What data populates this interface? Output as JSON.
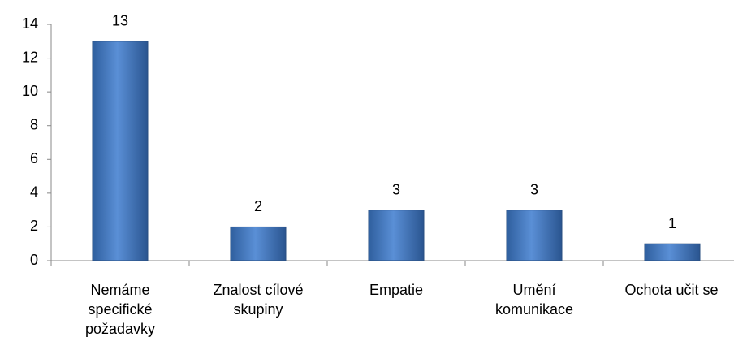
{
  "chart_data": {
    "type": "bar",
    "categories": [
      "Nemáme specifické požadavky",
      "Znalost cílové skupiny",
      "Empatie",
      "Umění komunikace",
      "Ochota učit se"
    ],
    "values": [
      13,
      2,
      3,
      3,
      1
    ],
    "color": "#4f81bd",
    "ylim": [
      0,
      14
    ],
    "yticks": [
      0,
      2,
      4,
      6,
      8,
      10,
      12,
      14
    ],
    "grid": false
  }
}
